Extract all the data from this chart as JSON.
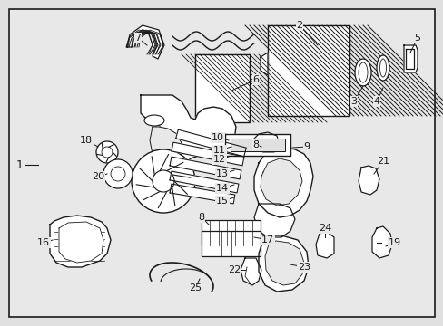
{
  "figsize": [
    4.89,
    3.6
  ],
  "dpi": 100,
  "bg_color": "#e0e0e0",
  "inner_bg": "#e8e8e8",
  "line_color": "#1a1a1a",
  "fill_color": "#ffffff",
  "label_fs": 8
}
